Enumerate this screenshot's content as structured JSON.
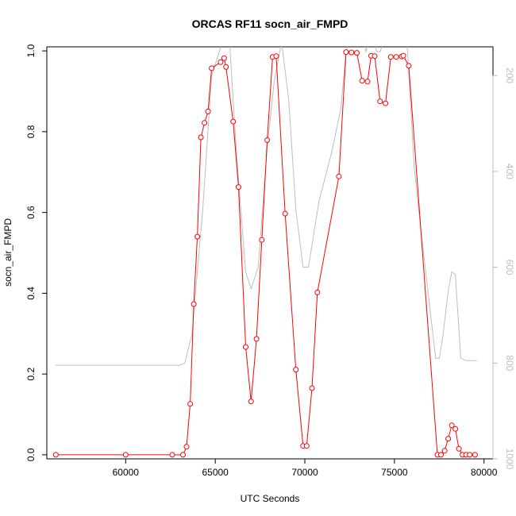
{
  "chart_data": {
    "type": "line",
    "title": "ORCAS RF11 socn_air_FMPD",
    "xlabel": "UTC Seconds",
    "ylabel": "socn_air_FMPD",
    "xlim": [
      55600,
      80500
    ],
    "ylim": [
      -0.01,
      1.01
    ],
    "y2lim": [
      1000,
      140
    ],
    "y2_reversed": true,
    "x_ticks": [
      60000,
      65000,
      70000,
      75000,
      80000
    ],
    "y_ticks": [
      0.0,
      0.2,
      0.4,
      0.6,
      0.8,
      1.0
    ],
    "y2_ticks": [
      200,
      400,
      600,
      800,
      1000
    ],
    "x_tick_labels": [
      "60000",
      "65000",
      "70000",
      "75000",
      "80000"
    ],
    "y_tick_labels": [
      "0.0",
      "0.2",
      "0.4",
      "0.6",
      "0.8",
      "1.0"
    ],
    "y2_tick_labels": [
      "200",
      "400",
      "600",
      "800",
      "1000"
    ],
    "colors": {
      "primary": "#ff0000",
      "secondary": "#bdbdbd"
    },
    "series": [
      {
        "type": "line+points",
        "color": "#ff0000",
        "x": [
          56100,
          60000,
          62600,
          63200,
          63400,
          63600,
          63800,
          64000,
          64200,
          64400,
          64600,
          64800,
          65300,
          65500,
          65600,
          66000,
          66300,
          66700,
          67000,
          67300,
          67600,
          67900,
          68200,
          68400,
          68900,
          69500,
          69900,
          70100,
          70400,
          70700,
          71900,
          72300,
          72600,
          72900,
          73200,
          73500,
          73700,
          73900,
          74200,
          74500,
          74800,
          75100,
          75400,
          75500,
          75800,
          77400,
          77600,
          77800,
          78000,
          78200,
          78400,
          78600,
          78800,
          79000,
          79200,
          79500
        ],
        "y": [
          0.0,
          0.0,
          0.0,
          0.0,
          0.02,
          0.126,
          0.373,
          0.54,
          0.786,
          0.822,
          0.85,
          0.957,
          0.972,
          0.982,
          0.96,
          0.825,
          0.663,
          0.267,
          0.132,
          0.287,
          0.532,
          0.779,
          0.985,
          0.987,
          0.597,
          0.211,
          0.022,
          0.022,
          0.165,
          0.402,
          0.689,
          0.997,
          0.996,
          0.995,
          0.926,
          0.924,
          0.988,
          0.987,
          0.875,
          0.87,
          0.985,
          0.985,
          0.986,
          0.988,
          0.963,
          0.0,
          0.0,
          0.01,
          0.04,
          0.073,
          0.064,
          0.015,
          0.0,
          0.0,
          0.0,
          0.0
        ],
        "gap_after_index": [
          52
        ]
      },
      {
        "type": "line",
        "color": "#bdbdbd",
        "axis": "right",
        "x": [
          56100,
          63000,
          63300,
          63700,
          64300,
          64800,
          65400,
          65800,
          66200,
          66700,
          67000,
          67400,
          67900,
          68300,
          68700,
          69100,
          69500,
          69900,
          70200,
          70800,
          71500,
          72000,
          72300,
          72500,
          73300,
          73400,
          73600,
          73900,
          74000,
          74200,
          74400,
          75700,
          76100,
          76500,
          77300,
          77500,
          77700,
          78000,
          78200,
          78400,
          78700,
          79000,
          79600
        ],
        "y": [
          805,
          805,
          800,
          740,
          480,
          200,
          130,
          130,
          370,
          610,
          645,
          600,
          350,
          210,
          130,
          250,
          480,
          600,
          600,
          460,
          360,
          270,
          150,
          130,
          130,
          150,
          130,
          130,
          150,
          150,
          130,
          130,
          390,
          530,
          790,
          790,
          745,
          650,
          610,
          615,
          790,
          795,
          795
        ]
      }
    ]
  }
}
